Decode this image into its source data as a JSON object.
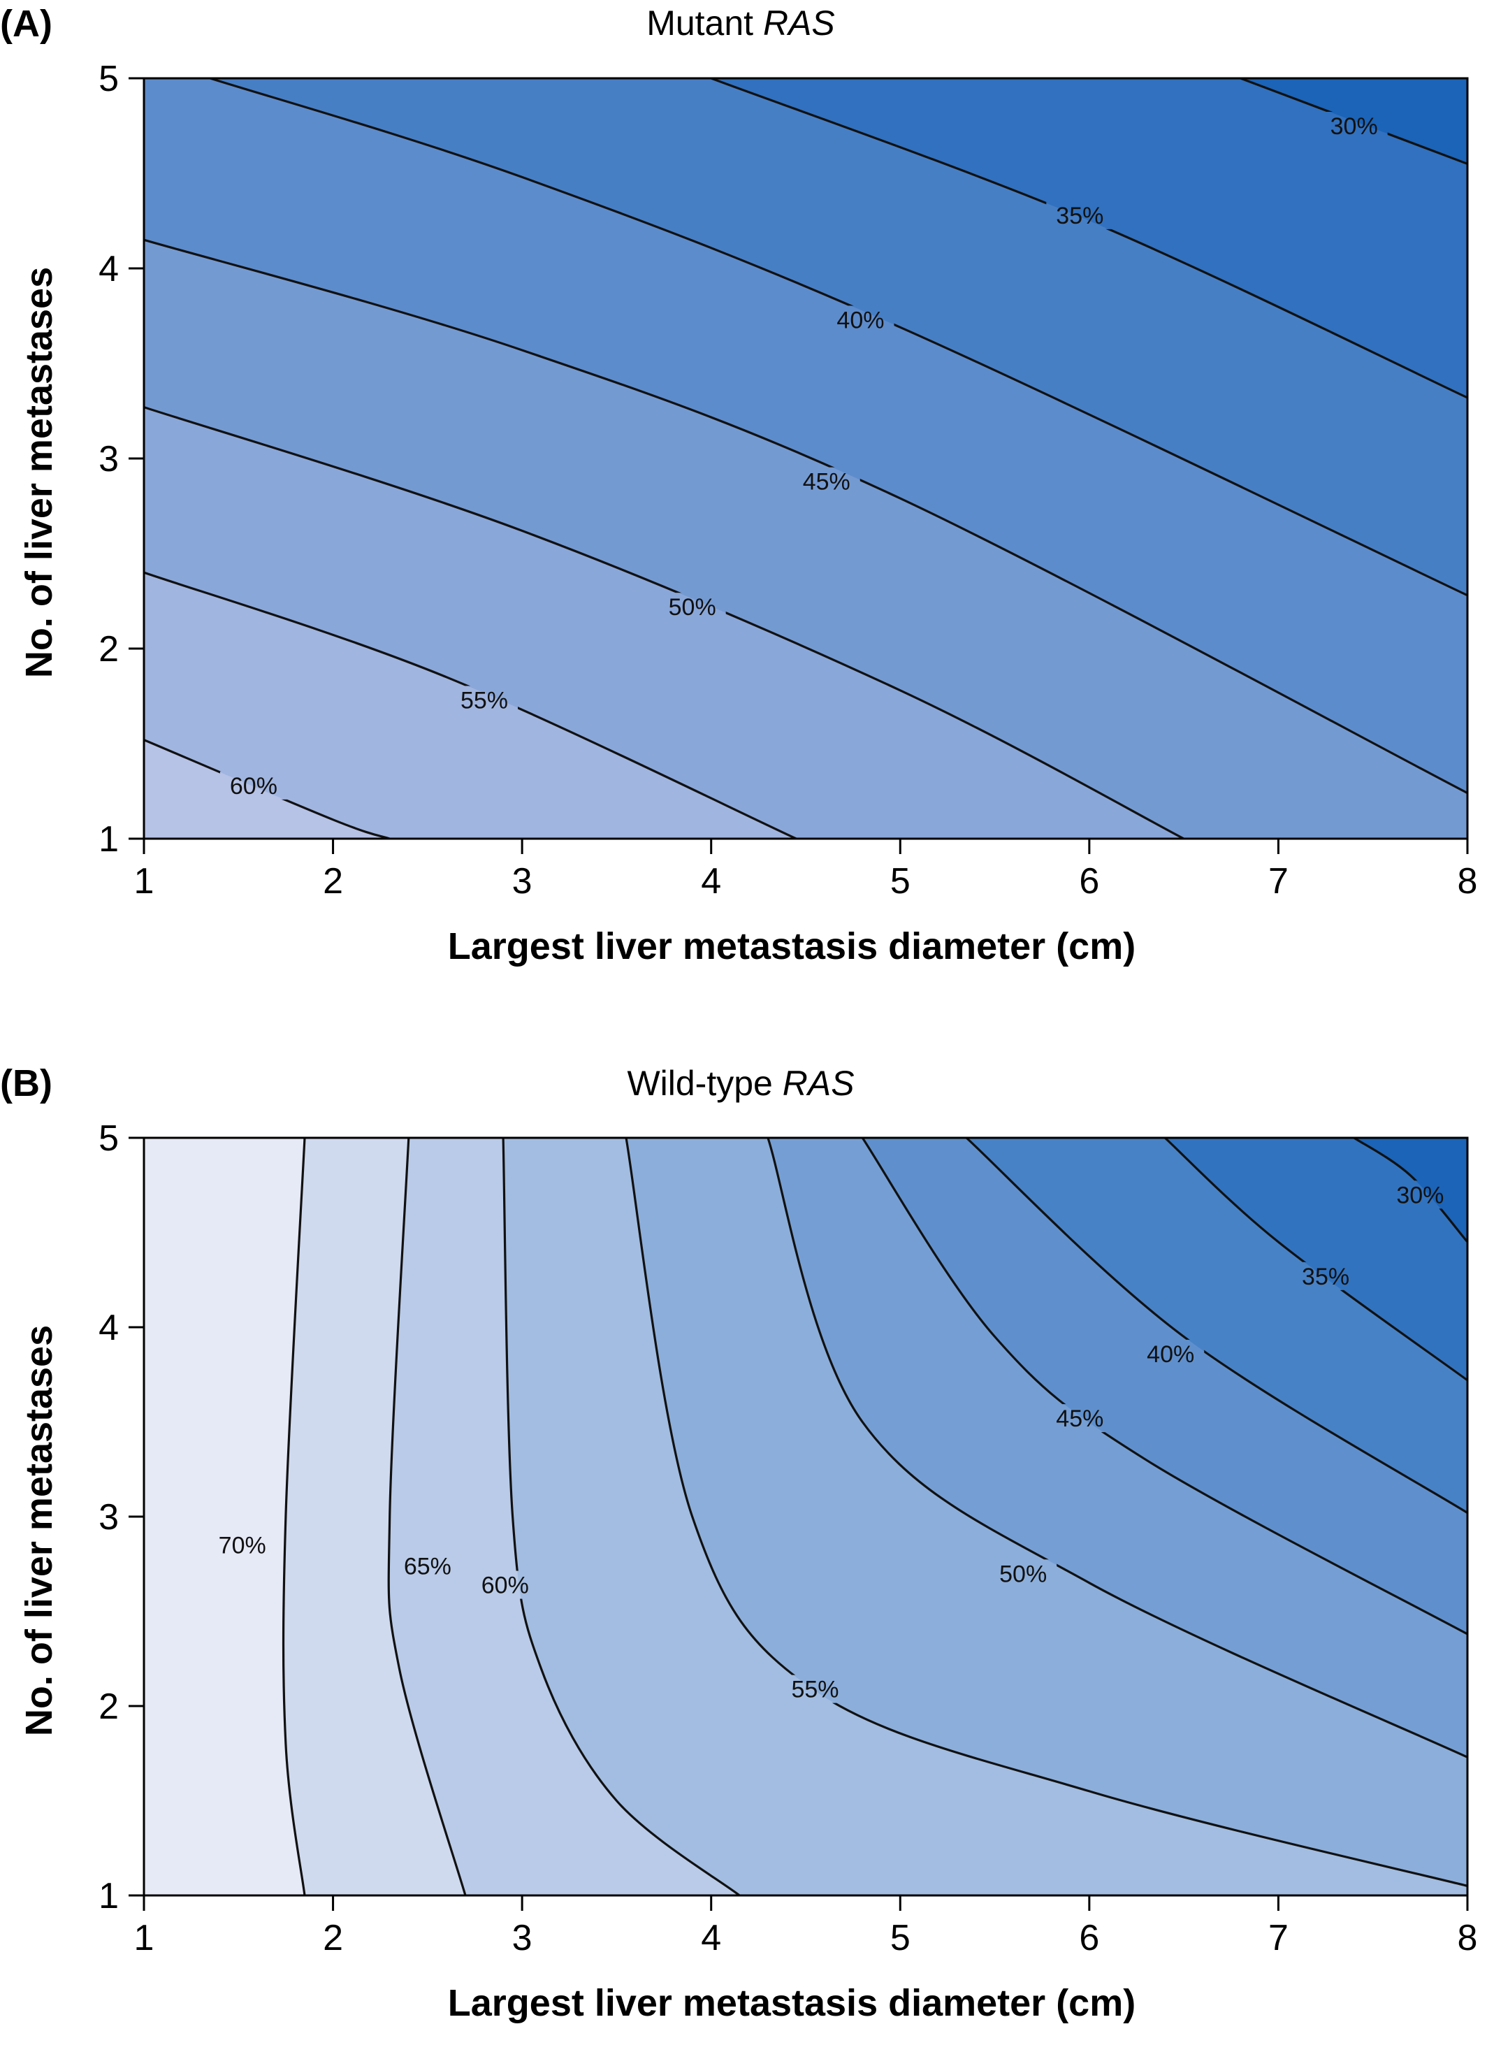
{
  "figure": {
    "panel_a": {
      "letter": "(A)",
      "title_prefix": "Mutant",
      "title_italic": "RAS"
    },
    "panel_b": {
      "letter": "(B)",
      "title_prefix": "Wild-type",
      "title_italic": "RAS"
    }
  },
  "chart_data": [
    {
      "type": "contour",
      "title": "Mutant RAS",
      "xlabel": "Largest liver metastasis diameter (cm)",
      "ylabel": "No. of liver metastases",
      "xlim": [
        1,
        8
      ],
      "ylim": [
        1,
        5
      ],
      "x_ticks": [
        "1",
        "2",
        "3",
        "4",
        "5",
        "6",
        "7",
        "8"
      ],
      "y_ticks": [
        "1",
        "2",
        "3",
        "4",
        "5"
      ],
      "grid": false,
      "colors": {
        "low": "#b6c2e6",
        "high": "#1b64b8",
        "line": "#111111"
      },
      "contours": [
        {
          "level": 30,
          "label": "30%",
          "points": [
            [
              6.8,
              5.0
            ],
            [
              8.0,
              4.55
            ]
          ],
          "label_at": [
            7.4,
            4.75
          ]
        },
        {
          "level": 35,
          "label": "35%",
          "points": [
            [
              4.0,
              5.0
            ],
            [
              6.0,
              4.25
            ],
            [
              8.0,
              3.32
            ]
          ],
          "label_at": [
            5.95,
            4.28
          ]
        },
        {
          "level": 40,
          "label": "40%",
          "points": [
            [
              1.35,
              5.0
            ],
            [
              3.0,
              4.48
            ],
            [
              5.0,
              3.69
            ],
            [
              8.0,
              2.28
            ]
          ],
          "label_at": [
            4.79,
            3.73
          ]
        },
        {
          "level": 45,
          "label": "45%",
          "points": [
            [
              1.0,
              4.15
            ],
            [
              3.0,
              3.57
            ],
            [
              5.0,
              2.79
            ],
            [
              8.0,
              1.24
            ]
          ],
          "label_at": [
            4.61,
            2.88
          ]
        },
        {
          "level": 50,
          "label": "50%",
          "points": [
            [
              1.0,
              3.27
            ],
            [
              3.0,
              2.62
            ],
            [
              5.0,
              1.78
            ],
            [
              6.5,
              1.0
            ]
          ],
          "label_at": [
            3.9,
            2.22
          ]
        },
        {
          "level": 55,
          "label": "55%",
          "points": [
            [
              1.0,
              2.4
            ],
            [
              2.6,
              1.85
            ],
            [
              4.45,
              1.0
            ]
          ],
          "label_at": [
            2.8,
            1.73
          ]
        },
        {
          "level": 60,
          "label": "60%",
          "points": [
            [
              1.0,
              1.52
            ],
            [
              2.0,
              1.1
            ],
            [
              2.3,
              1.0
            ]
          ],
          "label_at": [
            1.58,
            1.28
          ]
        }
      ]
    },
    {
      "type": "contour",
      "title": "Wild-type RAS",
      "xlabel": "Largest liver metastasis diameter (cm)",
      "ylabel": "No. of liver metastases",
      "xlim": [
        1,
        8
      ],
      "ylim": [
        1,
        5
      ],
      "x_ticks": [
        "1",
        "2",
        "3",
        "4",
        "5",
        "6",
        "7",
        "8"
      ],
      "y_ticks": [
        "1",
        "2",
        "3",
        "4",
        "5"
      ],
      "grid": false,
      "colors": {
        "low": "#e6e9f6",
        "high": "#1b64b8",
        "line": "#111111"
      },
      "contours": [
        {
          "level": 30,
          "label": "30%",
          "points": [
            [
              7.4,
              5.0
            ],
            [
              7.7,
              4.8
            ],
            [
              8.0,
              4.45
            ]
          ],
          "label_at": [
            7.75,
            4.7
          ]
        },
        {
          "level": 35,
          "label": "35%",
          "points": [
            [
              6.4,
              5.0
            ],
            [
              7.0,
              4.45
            ],
            [
              8.0,
              3.72
            ]
          ],
          "label_at": [
            7.25,
            4.27
          ]
        },
        {
          "level": 40,
          "label": "40%",
          "points": [
            [
              5.35,
              5.0
            ],
            [
              6.5,
              3.95
            ],
            [
              8.0,
              3.02
            ]
          ],
          "label_at": [
            6.43,
            3.86
          ]
        },
        {
          "level": 45,
          "label": "45%",
          "points": [
            [
              4.8,
              5.0
            ],
            [
              5.5,
              3.95
            ],
            [
              6.3,
              3.3
            ],
            [
              8.0,
              2.38
            ]
          ],
          "label_at": [
            5.95,
            3.52
          ]
        },
        {
          "level": 50,
          "label": "50%",
          "points": [
            [
              4.3,
              5.0
            ],
            [
              4.8,
              3.5
            ],
            [
              6.0,
              2.65
            ],
            [
              8.0,
              1.73
            ]
          ],
          "label_at": [
            5.65,
            2.7
          ]
        },
        {
          "level": 55,
          "label": "55%",
          "points": [
            [
              3.55,
              5.0
            ],
            [
              3.9,
              3.0
            ],
            [
              4.55,
              2.08
            ],
            [
              6.0,
              1.55
            ],
            [
              8.0,
              1.05
            ]
          ],
          "label_at": [
            4.55,
            2.09
          ]
        },
        {
          "level": 60,
          "label": "60%",
          "points": [
            [
              2.9,
              5.0
            ],
            [
              2.95,
              3.0
            ],
            [
              3.1,
              2.2
            ],
            [
              3.5,
              1.5
            ],
            [
              4.15,
              1.0
            ]
          ],
          "label_at": [
            2.91,
            2.64
          ]
        },
        {
          "level": 65,
          "label": "65%",
          "points": [
            [
              2.4,
              5.0
            ],
            [
              2.3,
              3.0
            ],
            [
              2.35,
              2.2
            ],
            [
              2.7,
              1.0
            ]
          ],
          "label_at": [
            2.5,
            2.74
          ]
        },
        {
          "level": 70,
          "label": "70%",
          "points": [
            [
              1.85,
              5.0
            ],
            [
              1.75,
              3.0
            ],
            [
              1.75,
              1.8
            ],
            [
              1.85,
              1.0
            ]
          ],
          "label_at": [
            1.52,
            2.85
          ]
        }
      ]
    }
  ]
}
